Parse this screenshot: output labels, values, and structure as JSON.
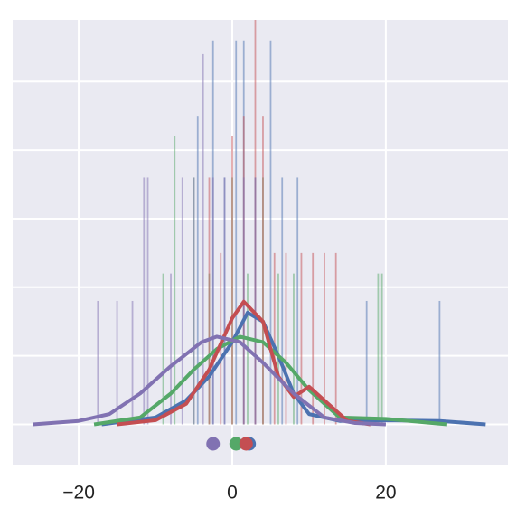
{
  "chart_data": {
    "type": "distplot",
    "xlim": [
      -28.6,
      35.9
    ],
    "ylim": [
      -0.6,
      5.9
    ],
    "xticks": [
      {
        "value": -20,
        "label": "−20"
      },
      0,
      20
    ],
    "yticks": [
      0,
      1,
      2,
      3,
      4,
      5
    ],
    "grid": true,
    "background": "#eaeaf2",
    "series": [
      {
        "color": "#4c72b0",
        "hist": {
          "x": [
            -4.5,
            -2.5,
            -1,
            0.5,
            1.5,
            3,
            5,
            6.5,
            8.5,
            17.5,
            27
          ],
          "values": [
            4.5,
            5.6,
            3.6,
            5.6,
            5.6,
            3.6,
            5.6,
            3.6,
            3.6,
            1.8,
            1.8
          ]
        },
        "kde": {
          "x": [
            -17,
            -10,
            -6,
            -3,
            0,
            2,
            4,
            6,
            8,
            10,
            14,
            20,
            27,
            33
          ],
          "values": [
            0,
            0.1,
            0.35,
            0.7,
            1.2,
            1.63,
            1.5,
            1.0,
            0.45,
            0.15,
            0.05,
            0.06,
            0.05,
            0
          ]
        },
        "mean": 2.2
      },
      {
        "color": "#55a868",
        "hist": {
          "x": [
            -9,
            -7.5,
            -5,
            -3,
            0,
            2,
            4,
            6,
            8,
            19,
            19.5
          ],
          "values": [
            2.2,
            4.2,
            3.6,
            2.2,
            3.6,
            2.2,
            3.6,
            2.2,
            2.2,
            2.2,
            2.2
          ]
        },
        "kde": {
          "x": [
            -18,
            -12,
            -8,
            -5,
            -2,
            1,
            4,
            7,
            10,
            14,
            20,
            28
          ],
          "values": [
            0,
            0.1,
            0.45,
            0.8,
            1.1,
            1.28,
            1.2,
            0.9,
            0.5,
            0.1,
            0.08,
            0
          ]
        },
        "mean": 0.5
      },
      {
        "color": "#c44e52",
        "hist": {
          "x": [
            -3,
            -1.5,
            0,
            1.5,
            3,
            4,
            5.5,
            7,
            9,
            10.5,
            12,
            13.5
          ],
          "values": [
            3.6,
            2.5,
            4.2,
            4.5,
            5.9,
            4.5,
            2.5,
            2.5,
            2.5,
            2.5,
            2.5,
            2.5
          ]
        },
        "kde": {
          "x": [
            -15,
            -10,
            -6,
            -3,
            0,
            1.5,
            4,
            6,
            8,
            10,
            12,
            15,
            18
          ],
          "values": [
            0,
            0.06,
            0.3,
            0.8,
            1.55,
            1.79,
            1.5,
            0.7,
            0.4,
            0.55,
            0.35,
            0.05,
            0
          ]
        },
        "mean": 1.8
      },
      {
        "color": "#8172b2",
        "hist": {
          "x": [
            -17.5,
            -15,
            -13,
            -11.5,
            -11,
            -8,
            -6.5,
            -5,
            -3.8,
            -2.5,
            -1,
            1.5,
            3
          ],
          "values": [
            1.8,
            1.8,
            1.8,
            3.6,
            3.6,
            2.2,
            3.6,
            3.6,
            5.4,
            3.6,
            3.6,
            3.6,
            3.6
          ]
        },
        "kde": {
          "x": [
            -26,
            -20,
            -16,
            -12,
            -8,
            -4,
            -2,
            1,
            4,
            8,
            12,
            16,
            20
          ],
          "values": [
            0,
            0.05,
            0.15,
            0.45,
            0.85,
            1.2,
            1.28,
            1.2,
            0.9,
            0.45,
            0.1,
            0.02,
            0
          ]
        },
        "mean": -2.5
      }
    ]
  }
}
